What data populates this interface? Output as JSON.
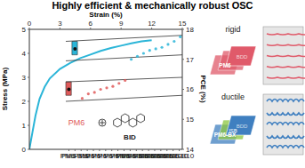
{
  "chart_data": {
    "type": "line",
    "title": "Highly efficient & mechanically robust OSC",
    "x_label": "Strain (%)",
    "xlim": [
      0,
      15
    ],
    "xticks": [
      0,
      3,
      6,
      9,
      12,
      15
    ],
    "y_label": "Stress (MPa)",
    "ylim": [
      0,
      5
    ],
    "yticks": [
      0,
      1,
      2,
      3,
      4,
      5
    ],
    "y2_label": "PCE (%)",
    "y2lim": [
      14,
      18
    ],
    "y2ticks": [
      14,
      15,
      16,
      17,
      18
    ],
    "categories": [
      "PM6",
      "PM6-B10"
    ],
    "series": [
      {
        "type": "line",
        "color": "#2bb5d8",
        "x": [
          0,
          0.3,
          0.6,
          1,
          1.5,
          2,
          3,
          4,
          5,
          6,
          7,
          8,
          9,
          10,
          11,
          12
        ],
        "values": [
          0,
          0.7,
          1.4,
          2.1,
          2.6,
          2.95,
          3.35,
          3.6,
          3.8,
          3.95,
          4.1,
          4.22,
          4.32,
          4.42,
          4.5,
          4.55
        ]
      },
      {
        "type": "box",
        "axis": "y2",
        "colors": [
          "#e05a5a",
          "#2bb5d8"
        ],
        "min": [
          15.6,
          16.95
        ],
        "q1": [
          15.8,
          17.15
        ],
        "q3": [
          16.25,
          17.6
        ],
        "max": [
          16.4,
          17.8
        ],
        "mean": [
          16.0,
          17.35
        ],
        "points": [
          [
            15.7,
            15.85,
            15.9,
            16.0,
            16.05,
            16.1,
            16.2,
            16.3
          ],
          [
            17.0,
            17.1,
            17.2,
            17.3,
            17.35,
            17.4,
            17.5,
            17.6,
            17.75
          ]
        ]
      }
    ],
    "annotations": [
      {
        "text": "PM6",
        "color": "#e05a5a"
      },
      {
        "text": "BID",
        "color": "#222222"
      }
    ]
  },
  "diagram": {
    "panels": [
      {
        "label": "rigid",
        "polymer": "PM6",
        "unit": "BDD",
        "color": "#e05a6a"
      },
      {
        "label": "ductile",
        "polymer": "PM6-BX",
        "unit": "BDD",
        "insert": "ISB",
        "color": "#3f7fc0",
        "insert_color": "#8cc63f"
      }
    ]
  }
}
